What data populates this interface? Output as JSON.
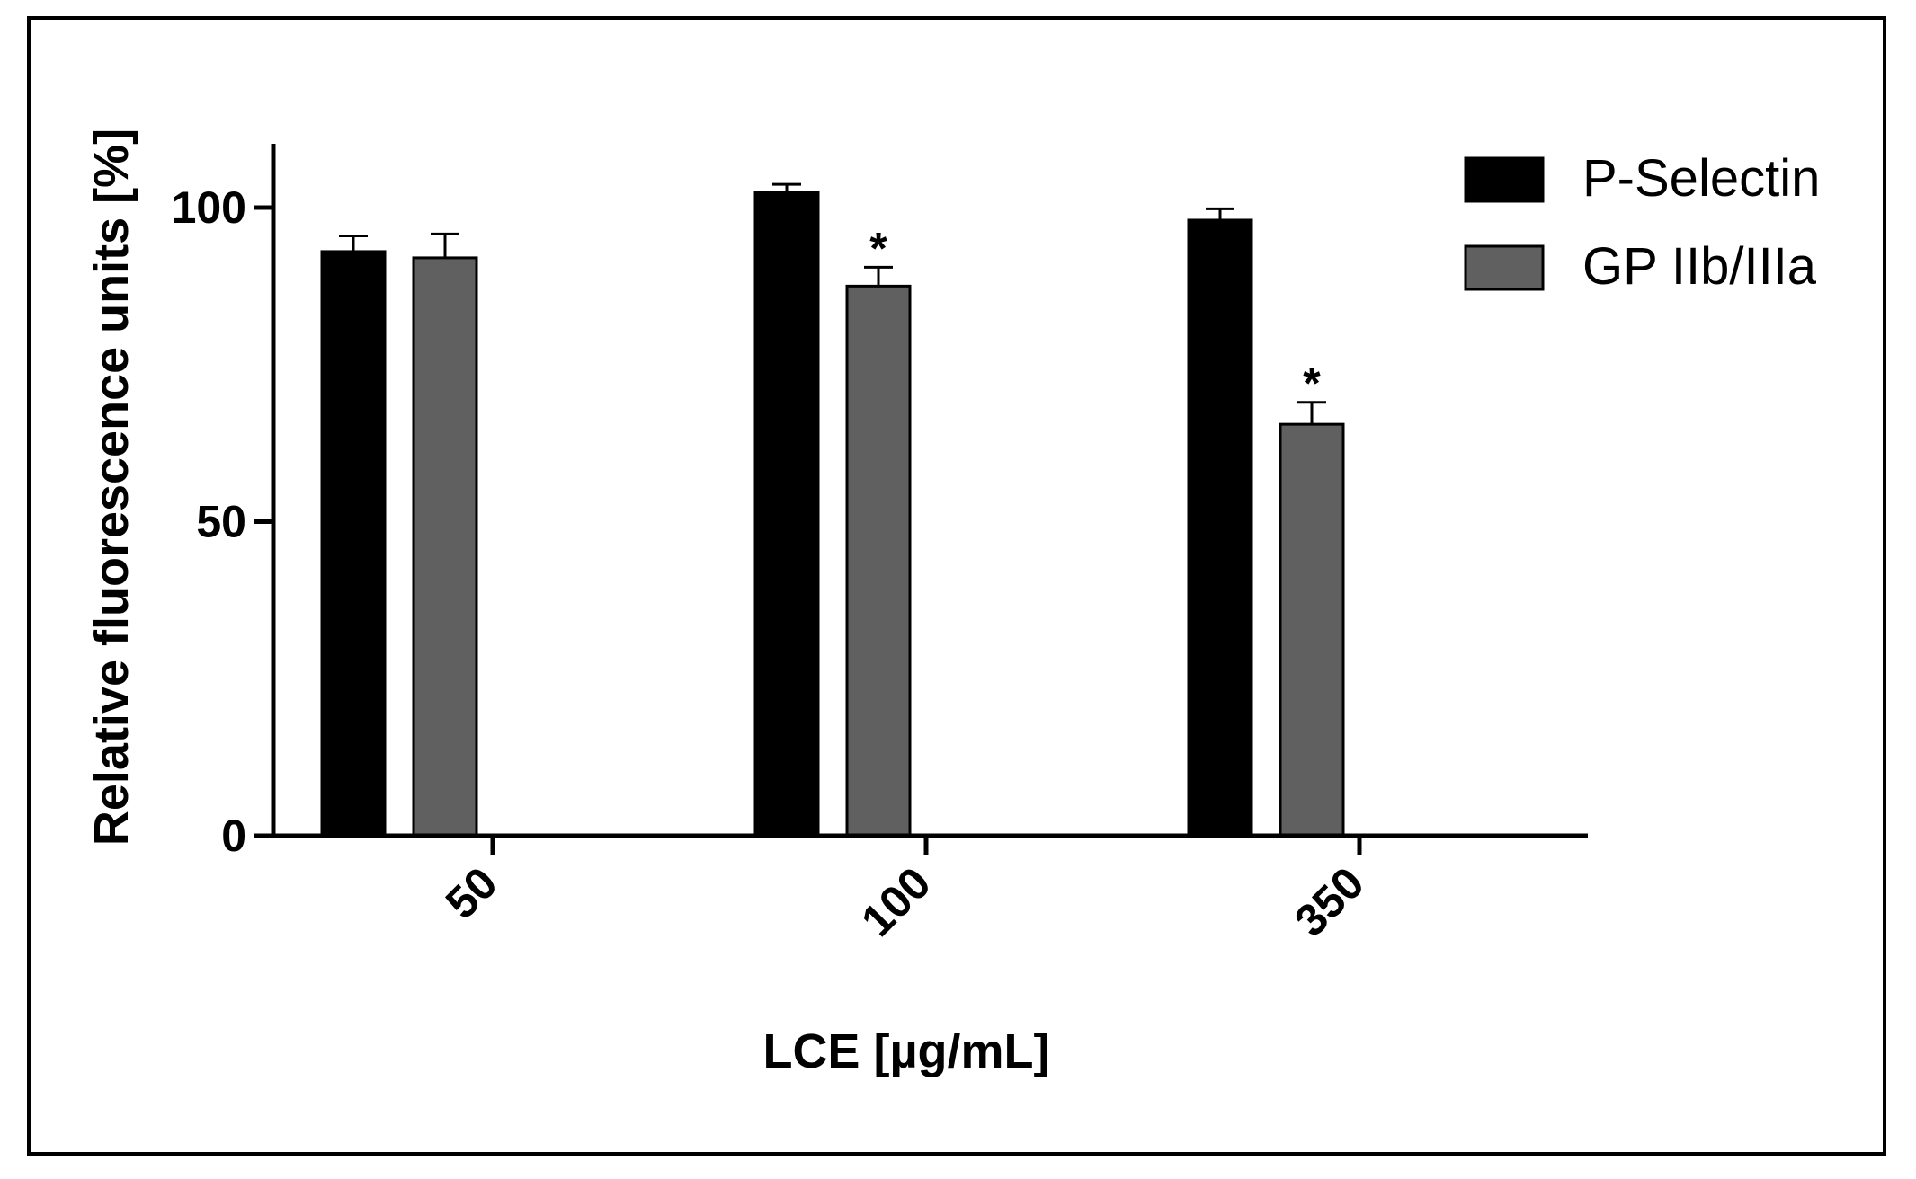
{
  "chart_data": {
    "type": "bar",
    "title": "",
    "xlabel": "LCE [µg/mL]",
    "ylabel": "Relative fluorescence units [%]",
    "categories": [
      "50",
      "100",
      "350"
    ],
    "ylim": [
      0,
      110
    ],
    "yticks": [
      0,
      50,
      100
    ],
    "ytick_labels": [
      "0",
      "50",
      "100"
    ],
    "series": [
      {
        "name": "P-Selectin",
        "color": "#000000",
        "values": [
          93,
          102.5,
          98
        ],
        "errors": [
          2.5,
          1.2,
          1.8
        ],
        "annotations": [
          "",
          "",
          ""
        ]
      },
      {
        "name": "GP IIb/IIIa",
        "color": "#606060",
        "values": [
          92,
          87.5,
          65.5
        ],
        "errors": [
          3.8,
          3.0,
          3.5
        ],
        "annotations": [
          "",
          "*",
          "*"
        ]
      }
    ],
    "legend": "top-right",
    "grid": false
  }
}
